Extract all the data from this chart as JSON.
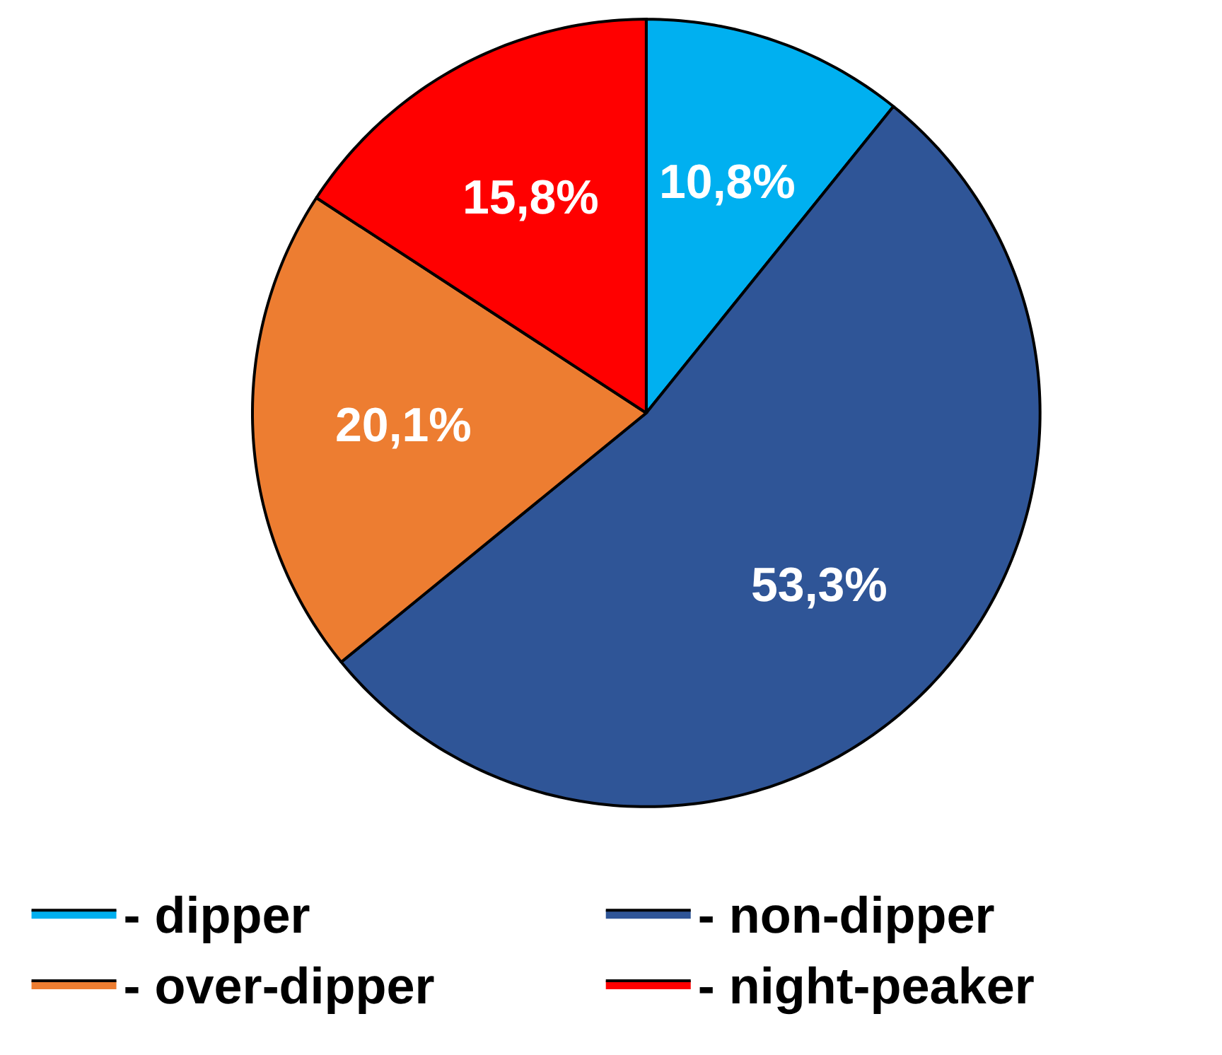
{
  "chart_data": {
    "type": "pie",
    "categories": [
      "- dipper",
      "- non-dipper",
      "- over-dipper",
      "- night-peaker"
    ],
    "values": [
      10.8,
      53.3,
      20.1,
      15.8
    ],
    "value_labels": [
      "10,8%",
      "53,3%",
      "20,1%",
      "15,8%"
    ],
    "colors": [
      "#00b0f0",
      "#2f5597",
      "#ed7d31",
      "#ff0000"
    ],
    "legend": "bottom"
  }
}
